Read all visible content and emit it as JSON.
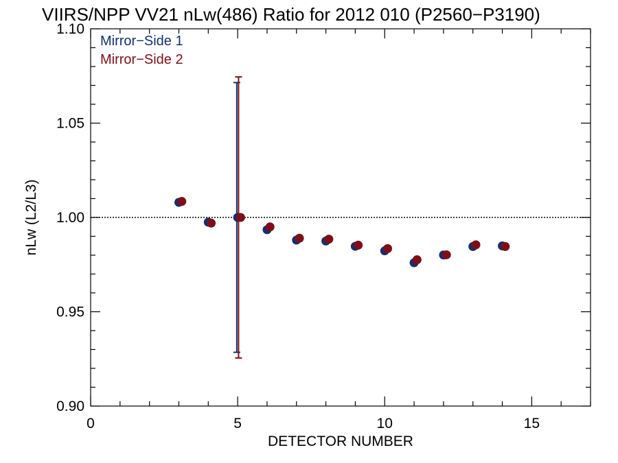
{
  "chart_data": {
    "type": "scatter",
    "title": "VIIRS/NPP VV21 nLw(486) Ratio for 2012 010 (P2560−P3190)",
    "xlabel": "DETECTOR NUMBER",
    "ylabel": "nLw (L2/L3)",
    "xlim": [
      0,
      17
    ],
    "ylim": [
      0.9,
      1.1
    ],
    "x_ticks": [
      0,
      5,
      10,
      15
    ],
    "y_ticks": [
      0.9,
      0.95,
      1.0,
      1.05,
      1.1
    ],
    "x_tick_labels": [
      "0",
      "5",
      "10",
      "15"
    ],
    "y_tick_labels": [
      "0.90",
      "0.95",
      "1.00",
      "1.05",
      "1.10"
    ],
    "reference_line": 1.0,
    "legend_position": "top-left",
    "grid": false,
    "series": [
      {
        "name": "Mirror−Side 1",
        "color": "#13306e",
        "x": [
          3,
          4,
          5,
          6,
          7,
          8,
          9,
          10,
          11,
          12,
          13,
          14
        ],
        "y": [
          1.008,
          0.9975,
          1.0,
          0.9935,
          0.988,
          0.9875,
          0.9847,
          0.9823,
          0.976,
          0.9801,
          0.9846,
          0.9849
        ],
        "error_bar": {
          "x": 5,
          "low": 0.9285,
          "high": 1.0715
        }
      },
      {
        "name": "Mirror−Side 2",
        "color": "#7d0f18",
        "x": [
          3,
          4,
          5,
          6,
          7,
          8,
          9,
          10,
          11,
          12,
          13,
          14
        ],
        "y": [
          1.0085,
          0.997,
          1.0,
          0.995,
          0.989,
          0.9885,
          0.9853,
          0.9835,
          0.9776,
          0.9802,
          0.9855,
          0.9846
        ],
        "error_bar": {
          "x": 5,
          "low": 0.9255,
          "high": 1.0745
        }
      }
    ]
  }
}
